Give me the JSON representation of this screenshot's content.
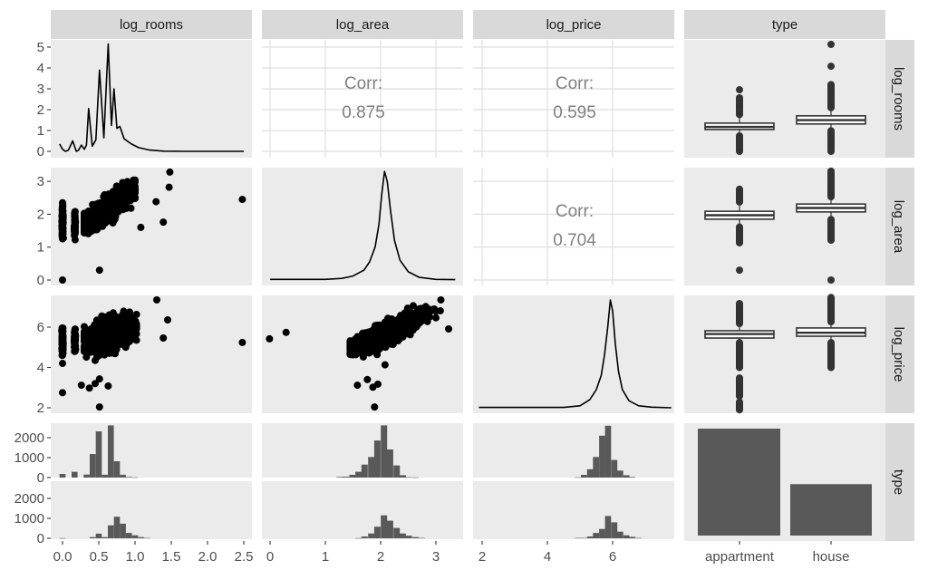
{
  "strips": {
    "top": [
      "log_rooms",
      "log_area",
      "log_price",
      "type"
    ],
    "right": [
      "log_rooms",
      "log_area",
      "log_price",
      "type"
    ]
  },
  "chart_data": {
    "type": "pairs",
    "title": "",
    "variables": [
      "log_rooms",
      "log_area",
      "log_price",
      "type"
    ],
    "axes": {
      "x": [
        {
          "var": "log_rooms",
          "ticks": [
            "0.0",
            "0.5",
            "1.0",
            "1.5",
            "2.0",
            "2.5"
          ],
          "tick_values": [
            0,
            0.5,
            1,
            1.5,
            2,
            2.5
          ]
        },
        {
          "var": "log_area",
          "ticks": [
            "0",
            "1",
            "2",
            "3"
          ],
          "tick_values": [
            0,
            1,
            2,
            3
          ]
        },
        {
          "var": "log_price",
          "ticks": [
            "2",
            "4",
            "6"
          ],
          "tick_values": [
            2,
            4,
            6
          ]
        },
        {
          "var": "type",
          "ticks": [
            "appartment",
            "house"
          ]
        }
      ],
      "y": [
        {
          "var": "log_rooms",
          "ticks": [
            "0",
            "1",
            "2",
            "3",
            "4",
            "5"
          ],
          "tick_values": [
            0,
            1,
            2,
            3,
            4,
            5
          ]
        },
        {
          "var": "log_area",
          "ticks": [
            "0",
            "1",
            "2",
            "3"
          ],
          "tick_values": [
            0,
            1,
            2,
            3
          ]
        },
        {
          "var": "log_price",
          "ticks": [
            "2",
            "4",
            "6"
          ],
          "tick_values": [
            2,
            4,
            6
          ]
        },
        {
          "var": "type",
          "ticks": [
            "0",
            "1000",
            "2000"
          ],
          "tick_values": [
            0,
            1000,
            2000
          ]
        }
      ],
      "grid": true
    },
    "correlations": [
      {
        "x": "log_area",
        "y": "log_rooms",
        "label": "Corr:",
        "value": "0.875"
      },
      {
        "x": "log_price",
        "y": "log_rooms",
        "label": "Corr:",
        "value": "0.595"
      },
      {
        "x": "log_price",
        "y": "log_area",
        "label": "Corr:",
        "value": "0.704"
      }
    ],
    "densities": {
      "log_rooms": [
        [
          -0.04,
          0.35
        ],
        [
          0.0,
          0.1
        ],
        [
          0.04,
          0.0
        ],
        [
          0.08,
          0.05
        ],
        [
          0.14,
          0.5
        ],
        [
          0.19,
          0.0
        ],
        [
          0.22,
          0.05
        ],
        [
          0.26,
          0.3
        ],
        [
          0.3,
          0.1
        ],
        [
          0.33,
          0.3
        ],
        [
          0.36,
          2.05
        ],
        [
          0.41,
          0.25
        ],
        [
          0.46,
          0.55
        ],
        [
          0.51,
          3.9
        ],
        [
          0.57,
          0.65
        ],
        [
          0.63,
          5.15
        ],
        [
          0.675,
          1.25
        ],
        [
          0.71,
          3.0
        ],
        [
          0.75,
          1.1
        ],
        [
          0.79,
          1.2
        ],
        [
          0.85,
          0.6
        ],
        [
          0.95,
          0.35
        ],
        [
          1.05,
          0.18
        ],
        [
          1.2,
          0.06
        ],
        [
          1.4,
          0.01
        ],
        [
          1.7,
          0
        ],
        [
          2.5,
          0
        ]
      ],
      "log_area": [
        [
          0,
          0.02
        ],
        [
          1.0,
          0.02
        ],
        [
          1.3,
          0.05
        ],
        [
          1.5,
          0.12
        ],
        [
          1.7,
          0.3
        ],
        [
          1.8,
          0.55
        ],
        [
          1.9,
          1.0
        ],
        [
          1.97,
          1.7
        ],
        [
          2.02,
          2.6
        ],
        [
          2.07,
          3.3
        ],
        [
          2.12,
          3.0
        ],
        [
          2.18,
          2.1
        ],
        [
          2.25,
          1.2
        ],
        [
          2.35,
          0.6
        ],
        [
          2.5,
          0.25
        ],
        [
          2.7,
          0.08
        ],
        [
          3.0,
          0.02
        ],
        [
          3.35,
          0.01
        ]
      ],
      "log_price": [
        [
          1.9,
          2.02
        ],
        [
          4.5,
          2.02
        ],
        [
          5.0,
          2.1
        ],
        [
          5.3,
          2.4
        ],
        [
          5.5,
          2.9
        ],
        [
          5.65,
          3.6
        ],
        [
          5.75,
          4.6
        ],
        [
          5.85,
          6.0
        ],
        [
          5.93,
          7.35
        ],
        [
          6.0,
          6.8
        ],
        [
          6.08,
          5.2
        ],
        [
          6.18,
          3.8
        ],
        [
          6.3,
          2.9
        ],
        [
          6.5,
          2.35
        ],
        [
          6.8,
          2.1
        ],
        [
          7.2,
          2.03
        ],
        [
          7.8,
          2.0
        ]
      ]
    },
    "scatter": [
      {
        "x": "log_rooms",
        "y": "log_area",
        "clusters": [
          {
            "x_mean": 0,
            "x_sd": 0.004,
            "intercept": 1.75,
            "slope": 0,
            "y_sd": 0.25,
            "y_min": 1.15,
            "y_max": 2.35,
            "n": 120
          },
          {
            "x_mean": 0.17,
            "x_sd": 0.004,
            "intercept": 1.65,
            "slope": 0,
            "y_sd": 0.2,
            "y_min": 1.2,
            "y_max": 2.1,
            "n": 60
          },
          {
            "x_mean": 0.6,
            "x_sd": 0.17,
            "x_min": 0.3,
            "x_max": 1.0,
            "intercept": 1.25,
            "slope": 1.5,
            "y_sd": 0.16,
            "n": 1500
          }
        ],
        "points": [
          [
            0,
            0
          ],
          [
            0.51,
            0.3
          ],
          [
            2.48,
            2.45
          ],
          [
            1.48,
            3.28
          ],
          [
            1.47,
            2.82
          ],
          [
            1.39,
            1.76
          ],
          [
            1.08,
            1.6
          ],
          [
            1.29,
            2.38
          ]
        ]
      },
      {
        "x": "log_rooms",
        "y": "log_price",
        "clusters": [
          {
            "x_mean": 0,
            "x_sd": 0.004,
            "intercept": 5.25,
            "slope": 0,
            "y_sd": 0.35,
            "y_min": 4.6,
            "y_max": 5.95,
            "n": 120
          },
          {
            "x_mean": 0.17,
            "x_sd": 0.004,
            "intercept": 5.35,
            "slope": 0,
            "y_sd": 0.3,
            "y_min": 4.8,
            "y_max": 5.9,
            "n": 60
          },
          {
            "x_mean": 0.62,
            "x_sd": 0.16,
            "x_min": 0.3,
            "x_max": 1.02,
            "intercept": 4.95,
            "slope": 1.1,
            "y_sd": 0.32,
            "n": 1800
          }
        ],
        "points": [
          [
            0,
            4.2
          ],
          [
            0,
            2.75
          ],
          [
            0.26,
            3.12
          ],
          [
            0.37,
            2.98
          ],
          [
            0.45,
            3.2
          ],
          [
            0.51,
            3.43
          ],
          [
            0.63,
            3.08
          ],
          [
            0.51,
            2.04
          ],
          [
            1.3,
            7.35
          ],
          [
            1.45,
            6.36
          ],
          [
            1.39,
            5.46
          ],
          [
            2.48,
            5.24
          ]
        ]
      },
      {
        "x": "log_area",
        "y": "log_price",
        "clusters": [
          {
            "x_mean": 2.1,
            "x_sd": 0.28,
            "x_min": 1.45,
            "x_max": 3.0,
            "intercept": 2.95,
            "slope": 1.3,
            "y_sd": 0.22,
            "n": 2000
          }
        ],
        "points": [
          [
            -0.01,
            5.42
          ],
          [
            0.29,
            5.74
          ],
          [
            2.08,
            4.13
          ],
          [
            1.58,
            3.12
          ],
          [
            1.76,
            3.4
          ],
          [
            1.86,
            3.02
          ],
          [
            1.95,
            3.17
          ],
          [
            1.89,
            2.04
          ],
          [
            3.09,
            7.35
          ],
          [
            3.23,
            5.91
          ],
          [
            3.08,
            6.81
          ]
        ]
      }
    ],
    "boxplots": [
      {
        "y": "log_rooms",
        "groups": [
          {
            "name": "appartment",
            "q1": 0.51,
            "median": 0.57,
            "q3": 0.66,
            "whisker_low": 0.4,
            "whisker_high": 0.82,
            "outlier_ranges": [
              [
                0.0,
                0.36
              ],
              [
                0.86,
                1.27
              ]
            ],
            "outliers": [
              1.44
            ]
          },
          {
            "name": "house",
            "q1": 0.64,
            "median": 0.73,
            "q3": 0.83,
            "whisker_low": 0.52,
            "whisker_high": 0.98,
            "outlier_ranges": [
              [
                0.0,
                0.5
              ],
              [
                1.02,
                1.57
              ]
            ],
            "outliers": [
              1.99,
              2.5
            ]
          }
        ]
      },
      {
        "y": "log_area",
        "groups": [
          {
            "name": "appartment",
            "q1": 1.85,
            "median": 1.97,
            "q3": 2.09,
            "whisker_low": 1.65,
            "whisker_high": 2.33,
            "outlier_ranges": [
              [
                1.13,
                1.62
              ],
              [
                2.37,
                2.78
              ]
            ],
            "outliers": [
              0.3
            ]
          },
          {
            "name": "house",
            "q1": 2.07,
            "median": 2.19,
            "q3": 2.31,
            "whisker_low": 1.88,
            "whisker_high": 2.5,
            "outlier_ranges": [
              [
                1.21,
                1.85
              ],
              [
                2.53,
                3.33
              ]
            ],
            "outliers": [
              0.0
            ]
          }
        ]
      },
      {
        "y": "log_price",
        "groups": [
          {
            "name": "appartment",
            "q1": 5.46,
            "median": 5.66,
            "q3": 5.82,
            "whisker_low": 5.27,
            "whisker_high": 6.15,
            "outlier_ranges": [
              [
                4.0,
                5.24
              ],
              [
                2.58,
                3.48
              ],
              [
                1.9,
                2.3
              ],
              [
                6.18,
                7.17
              ]
            ],
            "outliers": []
          },
          {
            "name": "house",
            "q1": 5.55,
            "median": 5.72,
            "q3": 5.96,
            "whisker_low": 5.27,
            "whisker_high": 6.25,
            "outlier_ranges": [
              [
                4.0,
                5.24
              ],
              [
                6.27,
                7.48
              ]
            ],
            "outliers": []
          }
        ]
      }
    ],
    "histograms": [
      {
        "x": "log_rooms",
        "bin_width": 0.083,
        "groups": [
          {
            "name": "appartment",
            "bins": [
              [
                0.0,
                180
              ],
              [
                0.167,
                290
              ],
              [
                0.333,
                150
              ],
              [
                0.417,
                1180
              ],
              [
                0.5,
                2320
              ],
              [
                0.583,
                140
              ],
              [
                0.667,
                2620
              ],
              [
                0.75,
                820
              ],
              [
                0.833,
                140
              ],
              [
                0.917,
                30
              ],
              [
                1.0,
                10
              ]
            ]
          },
          {
            "name": "house",
            "bins": [
              [
                0.0,
                10
              ],
              [
                0.417,
                60
              ],
              [
                0.5,
                230
              ],
              [
                0.583,
                60
              ],
              [
                0.667,
                650
              ],
              [
                0.75,
                1080
              ],
              [
                0.833,
                730
              ],
              [
                0.917,
                270
              ],
              [
                1.0,
                150
              ],
              [
                1.083,
                60
              ],
              [
                1.167,
                20
              ]
            ]
          }
        ]
      },
      {
        "x": "log_area",
        "bin_width": 0.114,
        "groups": [
          {
            "name": "appartment",
            "bins": [
              [
                1.26,
                30
              ],
              [
                1.37,
                45
              ],
              [
                1.49,
                135
              ],
              [
                1.6,
                290
              ],
              [
                1.71,
                650
              ],
              [
                1.83,
                1030
              ],
              [
                1.94,
                1860
              ],
              [
                2.06,
                2620
              ],
              [
                2.17,
                1410
              ],
              [
                2.29,
                610
              ],
              [
                2.4,
                120
              ],
              [
                2.51,
                20
              ],
              [
                2.63,
                10
              ]
            ]
          },
          {
            "name": "house",
            "bins": [
              [
                1.6,
                10
              ],
              [
                1.71,
                90
              ],
              [
                1.83,
                240
              ],
              [
                1.94,
                580
              ],
              [
                2.06,
                1150
              ],
              [
                2.17,
                880
              ],
              [
                2.29,
                520
              ],
              [
                2.4,
                240
              ],
              [
                2.51,
                130
              ],
              [
                2.63,
                60
              ],
              [
                2.74,
                20
              ]
            ]
          }
        ]
      },
      {
        "x": "log_price",
        "bin_width": 0.185,
        "groups": [
          {
            "name": "appartment",
            "bins": [
              [
                4.94,
                15
              ],
              [
                5.12,
                135
              ],
              [
                5.31,
                420
              ],
              [
                5.49,
                1030
              ],
              [
                5.68,
                2100
              ],
              [
                5.86,
                2600
              ],
              [
                6.05,
                880
              ],
              [
                6.23,
                350
              ],
              [
                6.42,
                120
              ],
              [
                6.6,
                30
              ]
            ]
          },
          {
            "name": "house",
            "bins": [
              [
                4.94,
                20
              ],
              [
                5.12,
                20
              ],
              [
                5.31,
                90
              ],
              [
                5.49,
                270
              ],
              [
                5.68,
                470
              ],
              [
                5.86,
                1120
              ],
              [
                6.05,
                800
              ],
              [
                6.23,
                330
              ],
              [
                6.42,
                150
              ],
              [
                6.6,
                75
              ],
              [
                6.79,
                20
              ]
            ]
          }
        ]
      }
    ],
    "bars": {
      "categories": [
        "appartment",
        "house"
      ],
      "values": [
        7900,
        3800
      ]
    }
  }
}
